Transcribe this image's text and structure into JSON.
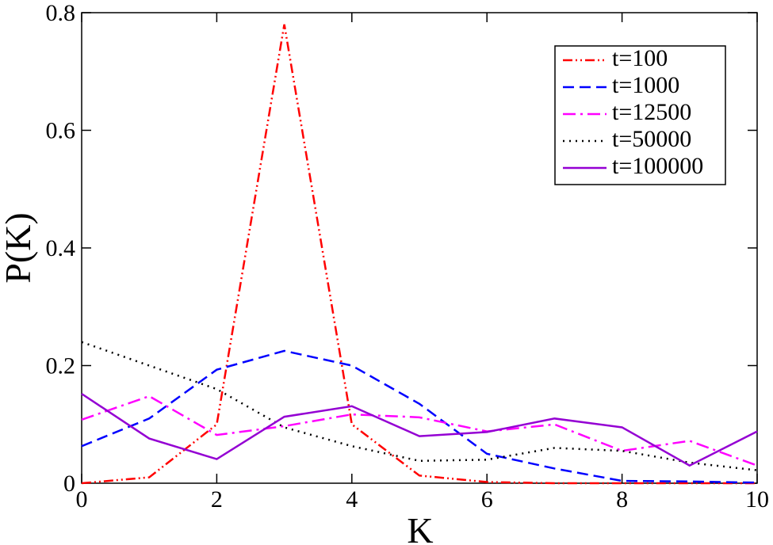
{
  "chart_data": {
    "type": "line",
    "x_label": "K",
    "y_label": "P(K)",
    "x": [
      0,
      1,
      2,
      3,
      4,
      5,
      6,
      7,
      8,
      9,
      10
    ],
    "series": [
      {
        "name": "t=100",
        "color": "#ff0000",
        "values": [
          0.0,
          0.01,
          0.1,
          0.78,
          0.1,
          0.013,
          0.002,
          0.0,
          0.0,
          0.0,
          0.0
        ]
      },
      {
        "name": "t=1000",
        "color": "#0000ff",
        "values": [
          0.063,
          0.11,
          0.193,
          0.225,
          0.2,
          0.135,
          0.05,
          0.025,
          0.004,
          0.003,
          0.001
        ]
      },
      {
        "name": "t=12500",
        "color": "#ff00ff",
        "values": [
          0.108,
          0.148,
          0.082,
          0.097,
          0.117,
          0.112,
          0.088,
          0.1,
          0.055,
          0.072,
          0.03
        ]
      },
      {
        "name": "t=50000",
        "color": "#000000",
        "values": [
          0.24,
          0.2,
          0.16,
          0.095,
          0.063,
          0.038,
          0.04,
          0.06,
          0.055,
          0.035,
          0.022
        ]
      },
      {
        "name": "t=100000",
        "color": "#9400d3",
        "values": [
          0.152,
          0.076,
          0.041,
          0.113,
          0.131,
          0.08,
          0.087,
          0.11,
          0.095,
          0.03,
          0.088
        ]
      }
    ],
    "xlim": [
      0,
      10
    ],
    "xticks": [
      0,
      2,
      4,
      6,
      8,
      10
    ],
    "ylim": [
      0,
      0.8
    ],
    "yticks": [
      0,
      0.2,
      0.4,
      0.6,
      0.8
    ],
    "legend": "upper right"
  }
}
